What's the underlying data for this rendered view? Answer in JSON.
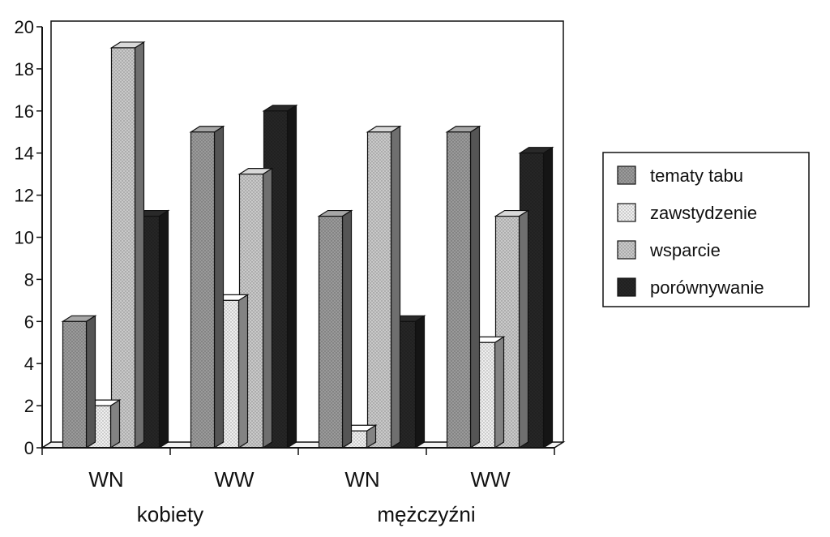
{
  "chart_data": {
    "type": "bar",
    "title": "",
    "xlabel": "",
    "ylabel": "",
    "ylim": [
      0,
      20
    ],
    "yticks": [
      0,
      2,
      4,
      6,
      8,
      10,
      12,
      14,
      16,
      18,
      20
    ],
    "categories": [
      "WN",
      "WW",
      "WN",
      "WW"
    ],
    "groups": [
      {
        "label": "kobiety",
        "categories": [
          0,
          1
        ]
      },
      {
        "label": "mężczyźni",
        "categories": [
          2,
          3
        ]
      }
    ],
    "series": [
      {
        "name": "tematy tabu",
        "values": [
          6,
          15,
          11,
          15
        ],
        "color": "#9a9a9a"
      },
      {
        "name": "zawstydzenie",
        "values": [
          2,
          7,
          0.8,
          5
        ],
        "color": "#efefef"
      },
      {
        "name": "wsparcie",
        "values": [
          19,
          13,
          15,
          11
        ],
        "color": "#c9c9c9"
      },
      {
        "name": "porównywanie",
        "values": [
          11,
          16,
          6,
          14
        ],
        "color": "#262626"
      }
    ],
    "legend_position": "right",
    "grid": false
  }
}
